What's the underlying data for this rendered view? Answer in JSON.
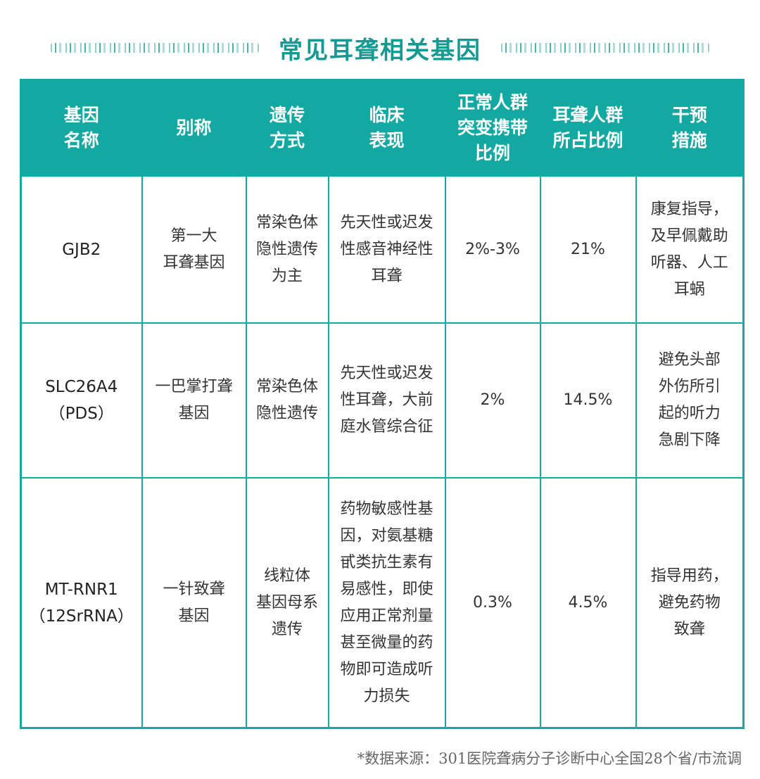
{
  "title": "常见耳聋相关基因",
  "headers": [
    "基因\n名称",
    "别称",
    "遗传\n方式",
    "临床\n表现",
    "正常人群\n突变携带\n比例",
    "耳聋人群\n所占比例",
    "干预\n措施"
  ],
  "rows": [
    {
      "gene": "GJB2",
      "alias": "第一大\n耳聋基因",
      "inheritance": "常染色体\n隐性遗传\n为主",
      "clinical": "先天性或迟发\n性感音神经性\n耳聋",
      "carrier": "2%-3%",
      "deaf_ratio": "21%",
      "intervention": "康复指导，\n及早佩戴助\n听器、人工\n耳蜗"
    },
    {
      "gene": "SLC26A4\n（PDS）",
      "alias": "一巴掌打聋\n基因",
      "inheritance": "常染色体\n隐性遗传",
      "clinical": "先天性或迟发\n性耳聋，大前\n庭水管综合征",
      "carrier": "2%",
      "deaf_ratio": "14.5%",
      "intervention": "避免头部\n外伤所引\n起的听力\n急剧下降"
    },
    {
      "gene": "MT-RNR1\n（12SrRNA）",
      "alias": "一针致聋\n基因",
      "inheritance": "线粒体\n基因母系\n遗传",
      "clinical": "药物敏感性基\n因，对氨基糖\n甙类抗生素有\n易感性，即使\n应用正常剂量\n甚至微量的药\n物即可造成听\n力损失",
      "carrier": "0.3%",
      "deaf_ratio": "4.5%",
      "intervention": "指导用药，\n避免药物\n致聋"
    }
  ],
  "footnote": "*数据来源：301医院聋病分子诊断中心全国28个省/市流调"
}
